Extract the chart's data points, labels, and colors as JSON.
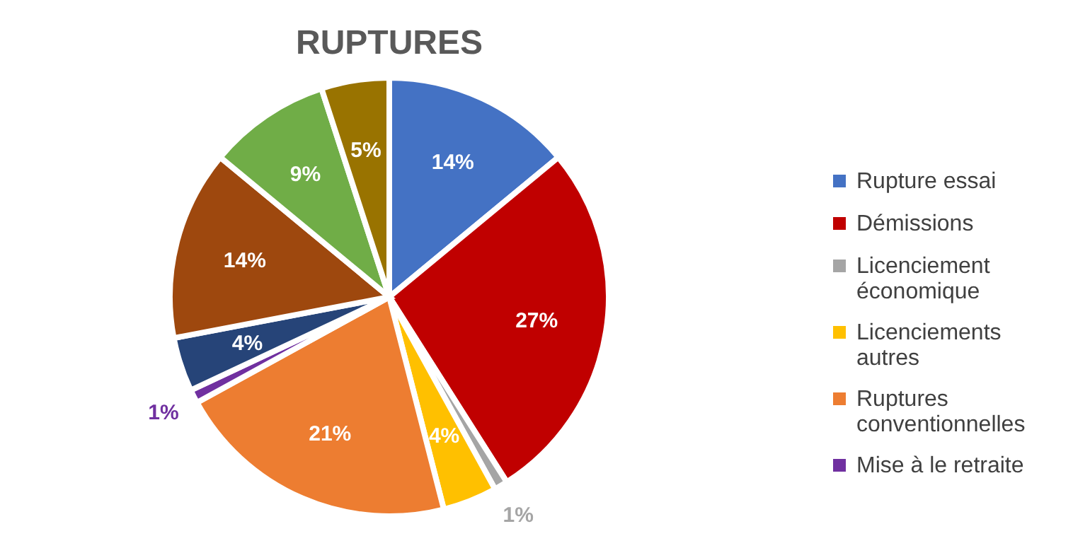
{
  "chart_data": {
    "type": "pie",
    "title": "RUPTURES",
    "categories": [
      "Rupture essai",
      "Démissions",
      "Licenciement économique",
      "Licenciements autres",
      "Ruptures conventionnelles",
      "Mise à le retraite",
      null,
      null,
      null,
      null
    ],
    "values": [
      14,
      27,
      1,
      4,
      21,
      1,
      4,
      14,
      9,
      5
    ],
    "colors": [
      "#4472c4",
      "#c00000",
      "#a5a5a5",
      "#ffc000",
      "#ed7d31",
      "#7030a0",
      "#264478",
      "#9e480e",
      "#70ad47",
      "#997300"
    ],
    "value_labels": [
      "14%",
      "27%",
      "1%",
      "4%",
      "21%",
      "1%",
      "4%",
      "14%",
      "9%",
      "5%"
    ],
    "legend": "right"
  }
}
